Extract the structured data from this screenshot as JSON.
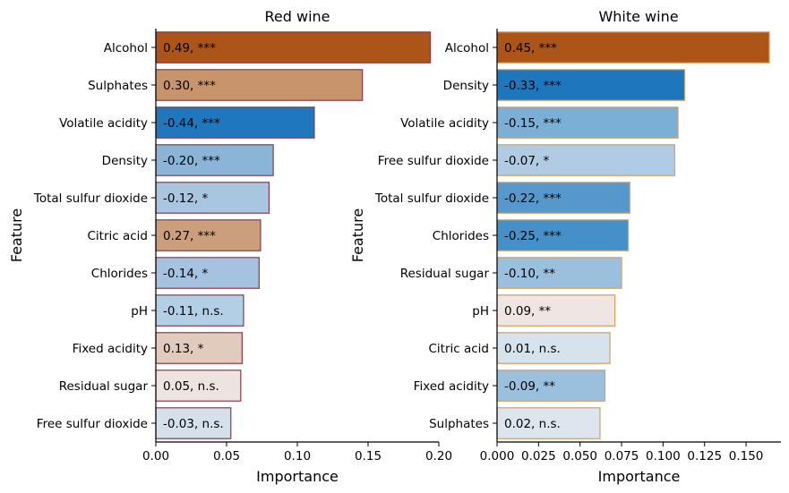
{
  "chart_data": [
    {
      "type": "bar",
      "orientation": "horizontal",
      "title": "Red wine",
      "xlabel": "Importance",
      "ylabel": "Feature",
      "xlim": [
        0,
        0.2
      ],
      "xticks": [
        "0.00",
        "0.05",
        "0.10",
        "0.15",
        "0.20"
      ],
      "bar_edge_color": "#8b3a4a",
      "categories": [
        "Alcohol",
        "Sulphates",
        "Volatile acidity",
        "Density",
        "Total sulfur dioxide",
        "Citric acid",
        "Chlorides",
        "pH",
        "Fixed acidity",
        "Residual sugar",
        "Free sulfur dioxide"
      ],
      "values": [
        0.194,
        0.146,
        0.112,
        0.083,
        0.08,
        0.074,
        0.073,
        0.062,
        0.061,
        0.06,
        0.053
      ],
      "labels": [
        "0.49, ***",
        "0.30, ***",
        "-0.44, ***",
        "-0.20, ***",
        "-0.12, *",
        "0.27, ***",
        "-0.14, *",
        "-0.11, n.s.",
        "0.13, *",
        "0.05, n.s.",
        "-0.03, n.s."
      ],
      "colors": [
        "#ad5418",
        "#c8946b",
        "#1f78be",
        "#8ab4d8",
        "#a9c6e1",
        "#cc9f7c",
        "#a5c3e0",
        "#b2cfe6",
        "#e0cbbd",
        "#ede4e1",
        "#d5e0ed"
      ]
    },
    {
      "type": "bar",
      "orientation": "horizontal",
      "title": "White wine",
      "xlabel": "Importance",
      "ylabel": "Feature",
      "xlim": [
        0,
        0.171
      ],
      "xticks": [
        "0.000",
        "0.025",
        "0.050",
        "0.075",
        "0.100",
        "0.125",
        "0.150"
      ],
      "bar_edge_color": "#d4a05c",
      "categories": [
        "Alcohol",
        "Density",
        "Volatile acidity",
        "Free sulfur dioxide",
        "Total sulfur dioxide",
        "Chlorides",
        "Residual sugar",
        "pH",
        "Citric acid",
        "Fixed acidity",
        "Sulphates"
      ],
      "values": [
        0.164,
        0.113,
        0.109,
        0.107,
        0.08,
        0.079,
        0.075,
        0.071,
        0.068,
        0.065,
        0.062
      ],
      "labels": [
        "0.45, ***",
        "-0.33, ***",
        "-0.15, ***",
        "-0.07, *",
        "-0.22, ***",
        "-0.25, ***",
        "-0.10, **",
        "0.09, **",
        "0.01, n.s.",
        "-0.09, **",
        "0.02, n.s."
      ],
      "colors": [
        "#ad5418",
        "#1e76bc",
        "#7bafd6",
        "#b0cce4",
        "#5698cc",
        "#4590c8",
        "#9bc0de",
        "#efe5e2",
        "#d6e2ec",
        "#9bc0de",
        "#dde5ef"
      ]
    }
  ]
}
